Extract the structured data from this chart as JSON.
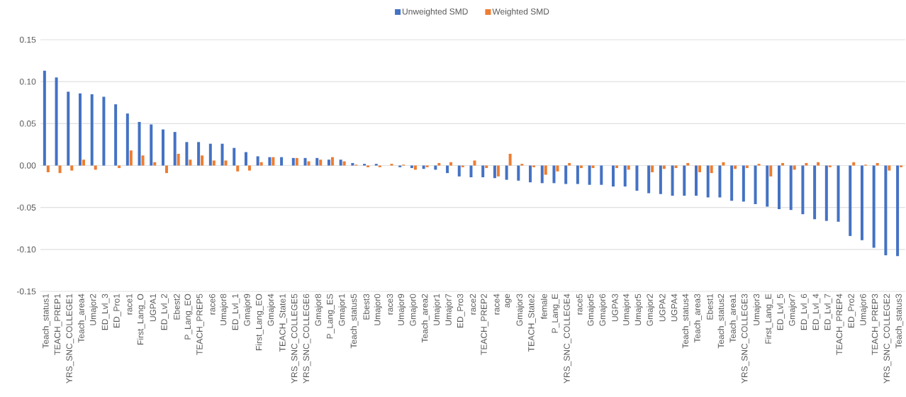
{
  "chart_data": {
    "type": "bar",
    "categories": [
      "Teach_status1",
      "TEACH_PREP1",
      "YRS_SNC_COLLEGE1",
      "Teach_area4",
      "Umajor2",
      "ED_Lvl_3",
      "ED_Pro1",
      "race1",
      "First_Lang_O",
      "UGPA1",
      "ED_Lvl_2",
      "Ebest2",
      "P_Lang_EO",
      "TEACH_PREP5",
      "race6",
      "Umajor8",
      "ED_Lvl_1",
      "Gmajor9",
      "First_Lang_EO",
      "Gmajor4",
      "TEACH_State1",
      "YRS_SNC_COLLEGE5",
      "YRS_SNC_COLLEGE6",
      "Gmajor8",
      "P_Lang_ES",
      "Gmajor1",
      "Teach_status5",
      "Ebest3",
      "Umajor0",
      "race3",
      "Umajor9",
      "Gmajor0",
      "Teach_area2",
      "Umajor1",
      "Umajor7",
      "ED_Pro3",
      "race2",
      "TEACH_PREP2",
      "race4",
      "age",
      "Gmajor3",
      "TEACH_State2",
      "female",
      "P_Lang_E",
      "YRS_SNC_COLLEGE4",
      "race5",
      "Gmajor5",
      "Gmajor6",
      "UGPA3",
      "Umajor4",
      "Umajor5",
      "Gmajor2",
      "UGPA2",
      "UGPA4",
      "Teach_status4",
      "Teach_area3",
      "Ebest1",
      "Teach_status2",
      "Teach_area1",
      "YRS_SNC_COLLEGE3",
      "Umajor3",
      "First_Lang_E",
      "ED_Lvl_5",
      "Gmajor7",
      "ED_Lvl_6",
      "ED_Lvl_4",
      "ED_Lvl_7",
      "TEACH_PREP4",
      "ED_Pro2",
      "Umajor6",
      "TEACH_PREP3",
      "YRS_SNC_COLLEGE2",
      "Teach_status3"
    ],
    "series": [
      {
        "name": "Unweighted SMD",
        "color": "#4472c4",
        "values": [
          0.113,
          0.105,
          0.088,
          0.086,
          0.085,
          0.082,
          0.073,
          0.062,
          0.052,
          0.049,
          0.043,
          0.04,
          0.028,
          0.028,
          0.026,
          0.026,
          0.021,
          0.016,
          0.011,
          0.01,
          0.01,
          0.009,
          0.009,
          0.009,
          0.007,
          0.007,
          0.003,
          0.002,
          0.002,
          0.0,
          -0.002,
          -0.003,
          -0.004,
          -0.005,
          -0.009,
          -0.013,
          -0.014,
          -0.014,
          -0.015,
          -0.017,
          -0.018,
          -0.02,
          -0.021,
          -0.021,
          -0.022,
          -0.022,
          -0.023,
          -0.023,
          -0.025,
          -0.025,
          -0.03,
          -0.033,
          -0.034,
          -0.036,
          -0.036,
          -0.036,
          -0.038,
          -0.038,
          -0.042,
          -0.043,
          -0.046,
          -0.049,
          -0.052,
          -0.053,
          -0.058,
          -0.064,
          -0.066,
          -0.067,
          -0.084,
          -0.089,
          -0.098,
          -0.107,
          -0.108
        ]
      },
      {
        "name": "Weighted SMD",
        "color": "#ed7d31",
        "values": [
          -0.008,
          -0.009,
          -0.006,
          0.007,
          -0.005,
          0.0,
          -0.003,
          0.018,
          0.012,
          0.004,
          -0.009,
          0.014,
          0.007,
          0.012,
          0.006,
          0.006,
          -0.007,
          -0.006,
          0.004,
          0.01,
          0.0,
          0.009,
          0.005,
          0.007,
          0.01,
          0.005,
          0.001,
          -0.002,
          -0.002,
          0.002,
          0.001,
          -0.005,
          -0.002,
          0.003,
          0.004,
          -0.002,
          0.006,
          -0.003,
          -0.013,
          0.014,
          0.002,
          -0.002,
          -0.011,
          -0.007,
          0.003,
          -0.003,
          -0.003,
          0.0,
          -0.003,
          -0.005,
          0.0,
          -0.008,
          -0.004,
          -0.003,
          0.003,
          -0.008,
          -0.009,
          0.004,
          -0.004,
          -0.003,
          0.002,
          -0.013,
          0.003,
          -0.005,
          0.003,
          0.004,
          -0.002,
          0.0,
          0.004,
          0.001,
          0.003,
          -0.006,
          -0.002
        ]
      }
    ],
    "ylim": [
      -0.15,
      0.15
    ],
    "yticks": [
      -0.15,
      {
        "value": -0.1,
        "label": "-0.10"
      },
      -0.05,
      {
        "value": 0,
        "label": "0.00"
      },
      0.05,
      {
        "value": 0.1,
        "label": "0.10"
      },
      0.15
    ],
    "grid": "y",
    "legend": "top"
  }
}
